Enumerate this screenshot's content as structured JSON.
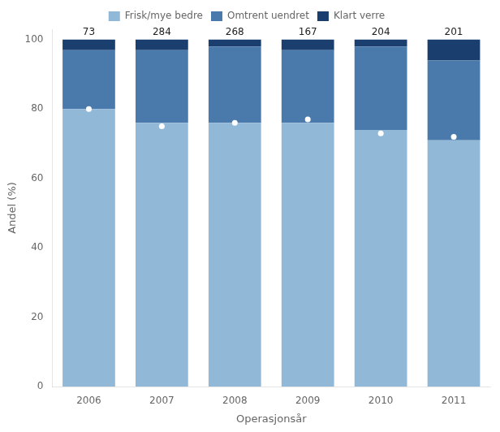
{
  "chart_data": {
    "type": "bar",
    "stacked": true,
    "categories": [
      "2006",
      "2007",
      "2008",
      "2009",
      "2010",
      "2011"
    ],
    "series": [
      {
        "name": "Frisk/mye bedre",
        "color": "#92b8d8",
        "values": [
          80,
          76,
          76,
          76,
          74,
          71
        ]
      },
      {
        "name": "Omtrent uendret",
        "color": "#4a7aab",
        "values": [
          17,
          21,
          22,
          21,
          24,
          23
        ]
      },
      {
        "name": "Klart verre",
        "color": "#1a3f6f",
        "values": [
          3,
          3,
          2,
          3,
          2,
          6
        ]
      },
      {
        "type": "scatter",
        "marker": "circle",
        "color": "#ffffff",
        "values": [
          80,
          75,
          76,
          77,
          73,
          72
        ]
      }
    ],
    "annotations": [
      "73",
      "284",
      "268",
      "167",
      "204",
      "201"
    ],
    "xlabel": "Operasjonsår",
    "ylabel": "Andel (%)",
    "ylim": [
      0,
      103
    ],
    "yticks": [
      0,
      20,
      40,
      60,
      80,
      100
    ],
    "grid": false,
    "legend": "top"
  }
}
